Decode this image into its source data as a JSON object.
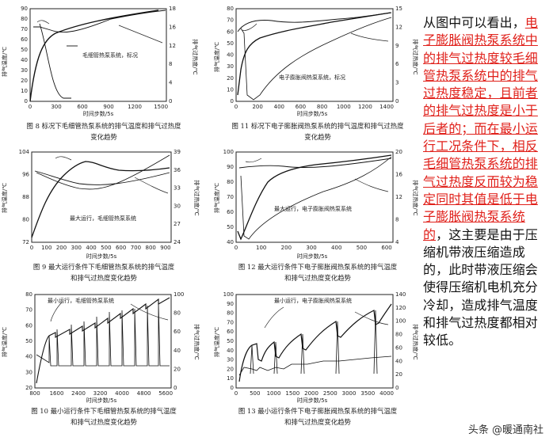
{
  "colors": {
    "text": "#111111",
    "highlight": "#e0201a",
    "line": "#111111"
  },
  "figures": [
    {
      "id": "fig8",
      "y_label": "排气温度/℃",
      "y2_label": "排气过热度/℃",
      "x_label": "时间步数/5s",
      "legend": "毛细管热泵系统，标况",
      "x_ticks": [
        "0",
        "300",
        "600",
        "900",
        "1200",
        "1500"
      ],
      "y_ticks": [
        "0",
        "10",
        "20",
        "30",
        "40",
        "50",
        "60",
        "70",
        "80",
        "90"
      ],
      "y2_ticks": [
        "0",
        "4",
        "8",
        "12",
        "16",
        "18"
      ],
      "caption": [
        "图 8 标况下毛细管热泵系统的排气温度和排气过热度",
        "变化趋势"
      ]
    },
    {
      "id": "fig11",
      "y_label": "排气温度/℃",
      "y2_label": "排气过热度/℃",
      "x_label": "时间步数/5s",
      "legend": "电子膨胀阀热泵系统，标况",
      "x_ticks": [
        "0",
        "200",
        "400",
        "600",
        "800",
        "1000",
        "1200",
        "1400"
      ],
      "y_ticks": [
        "0",
        "10",
        "20",
        "30",
        "40",
        "50",
        "60",
        "70",
        "80"
      ],
      "y2_ticks": [
        "0",
        "3",
        "6",
        "9",
        "12",
        "15"
      ],
      "caption": [
        "图 11 标况下电子膨胀阀热泵系统的排气温度和排气过热度",
        "变化趋势"
      ]
    },
    {
      "id": "fig9",
      "y_label": "排气温度/℃",
      "y2_label": "排气过热度/℃",
      "x_label": "时间步数/5s",
      "legend": "最大运行，毛细管热泵系统",
      "x_ticks": [
        "0",
        "100",
        "200",
        "300",
        "400",
        "500",
        "600",
        "700",
        "800",
        "900"
      ],
      "y_ticks": [
        "72",
        "80",
        "88",
        "96",
        "104"
      ],
      "y2_ticks": [
        "24",
        "27",
        "30",
        "33",
        "36",
        "39"
      ],
      "caption": [
        "图 9 最大运行条件下毛细管热泵系统的排气温度",
        "和排气过热度变化趋势"
      ]
    },
    {
      "id": "fig12",
      "y_label": "排气温度/℃",
      "y2_label": "排气过热度/℃",
      "x_label": "时间步数/5s",
      "legend": "最大运行，电子膨胀阀热泵系统",
      "x_ticks": [
        "0",
        "100",
        "200",
        "300",
        "400",
        "500",
        "600"
      ],
      "y_ticks": [
        "40",
        "50",
        "60",
        "70",
        "80",
        "90",
        "100"
      ],
      "y2_ticks": [
        "4",
        "8",
        "12",
        "16",
        "20"
      ],
      "caption": [
        "图 12 最大运行条件下电子膨胀阀热泵系统的排气温度",
        "和排气过热度变化趋势"
      ]
    },
    {
      "id": "fig10",
      "y_label": "排气温度/℃",
      "y2_label": "排气过热度/℃",
      "x_label": "时间步数/5s",
      "legend": "最小运行，毛细管热泵系统",
      "x_ticks": [
        "800",
        "1600",
        "2400",
        "3200",
        "4000",
        "4800",
        "5600"
      ],
      "y_ticks": [
        "20",
        "30",
        "40",
        "50",
        "60",
        "70",
        "80"
      ],
      "y2_ticks": [
        "0",
        "20",
        "40",
        "60",
        "80",
        "100"
      ],
      "caption": [
        "图 10 最小运行条件下毛细管热泵系统的排气温度",
        "和排气过热度变化趋势"
      ]
    },
    {
      "id": "fig13",
      "y_label": "排气温度/℃",
      "y2_label": "排气过热度/℃",
      "x_label": "时间步数/5s",
      "legend": "最小运行，电子膨胀阀热泵系统",
      "x_ticks": [
        "0",
        "500",
        "1000",
        "1500",
        "2000",
        "2500",
        "3000",
        "3500",
        "4000"
      ],
      "y_ticks": [
        "0",
        "10",
        "20",
        "30",
        "40",
        "50",
        "60",
        "70",
        "80",
        "90",
        "100"
      ],
      "y2_ticks": [
        "0",
        "20",
        "40",
        "60",
        "80",
        "100",
        "120",
        "140"
      ],
      "caption": [
        "图 13 最小运行条件下电子膨胀阀热泵系统的排气温度",
        "和排气过热度变化趋势"
      ]
    }
  ],
  "side_text": {
    "intro": "从图中可以看出，",
    "highlight": "电子膨胀阀热泵系统中的排气过热度较毛细管热泵系统中的排气过热度稳定，且前者的排气过热度是小于后者的；而在最小运行工况条件下，相反毛细管热泵系统的排气过热度反而较为稳定同时其值是低于电子膨胀阀热泵系统的",
    "rest": "，这主要是由于压缩机带液压缩造成的，此时带液压缩会使得压缩机电机充分冷却，造成排气温度和排气过热度都相对较低。"
  },
  "watermark": "头条 @暖通南社"
}
